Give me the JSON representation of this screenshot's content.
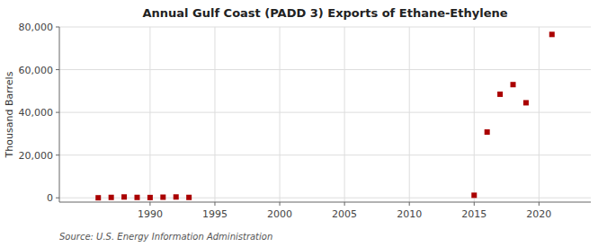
{
  "chart_data": {
    "type": "scatter",
    "title": "Annual Gulf Coast (PADD 3) Exports of Ethane-Ethylene",
    "ylabel": "Thousand Barrels",
    "source": "Source: U.S. Energy Information Administration",
    "x": [
      1986,
      1987,
      1988,
      1989,
      1990,
      1991,
      1992,
      1993,
      2015,
      2016,
      2017,
      2018,
      2019,
      2021
    ],
    "values": [
      20,
      200,
      400,
      200,
      150,
      300,
      400,
      200,
      1200,
      30800,
      48500,
      53000,
      44500,
      76500
    ],
    "color": "#aa0000",
    "marker": "square",
    "xlim": [
      1983,
      2024
    ],
    "ylim": [
      -2000,
      80000
    ],
    "xticks": [
      1990,
      1995,
      2000,
      2005,
      2010,
      2015,
      2020
    ],
    "yticks": [
      0,
      {
        "value": 20000,
        "label": "20,000"
      },
      {
        "value": 40000,
        "label": "40,000"
      },
      {
        "value": 60000,
        "label": "60,000"
      },
      {
        "value": 80000,
        "label": "80,000"
      }
    ],
    "grid": true
  }
}
